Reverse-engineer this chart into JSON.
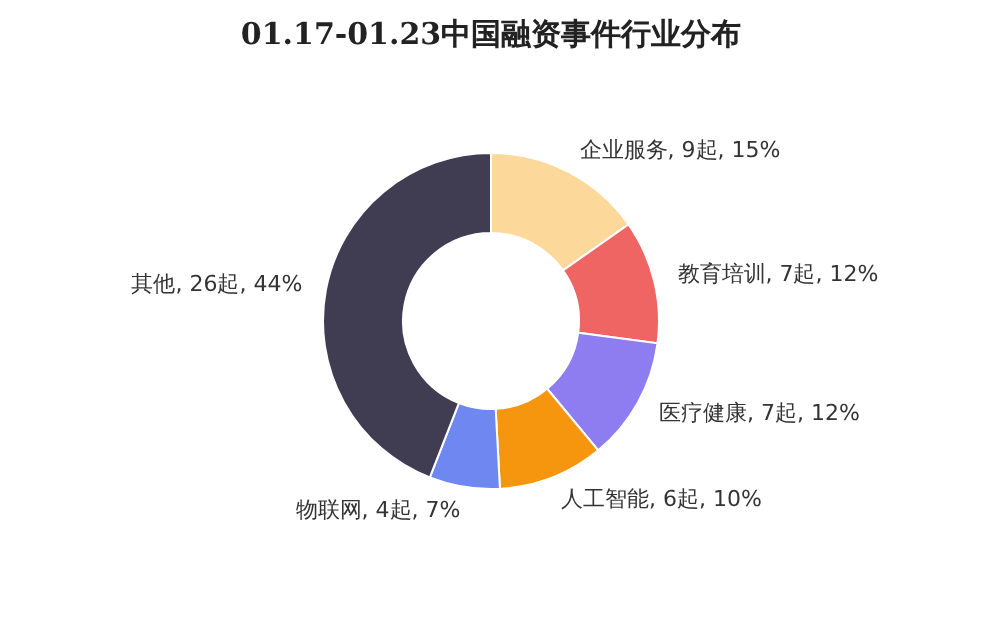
{
  "chart_data": {
    "type": "donut",
    "title": "01.17-01.23中国融资事件行业分布",
    "categories": [
      "企业服务",
      "教育培训",
      "医疗健康",
      "人工智能",
      "物联网",
      "其他"
    ],
    "values": [
      9,
      7,
      7,
      6,
      4,
      26
    ],
    "value_labels": [
      "9起, 15%",
      "7起, 12%",
      "7起, 12%",
      "6起, 10%",
      "4起, 7%",
      "26起, 44%"
    ],
    "colors": [
      "#fcd99b",
      "#ef6563",
      "#8e7cf1",
      "#f6960f",
      "#6f87f1",
      "#403c52"
    ],
    "legend": false
  }
}
